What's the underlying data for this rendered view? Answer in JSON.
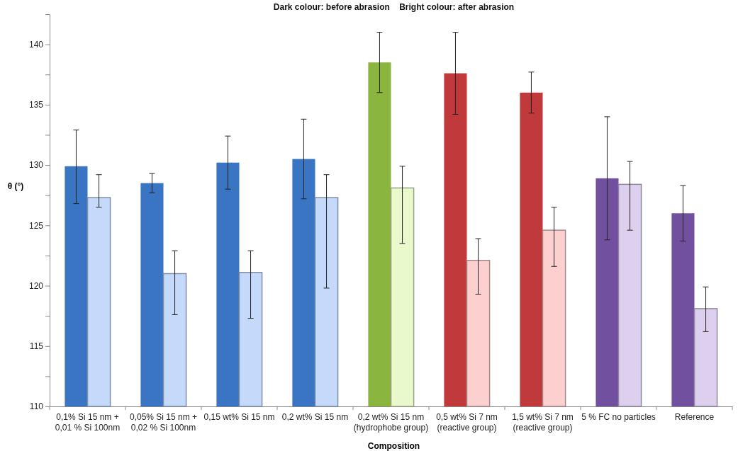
{
  "chart_data": {
    "type": "bar",
    "title": "Dark colour: before abrasion    Bright colour: after abrasion",
    "xlabel": "Composition",
    "ylabel": "θ (°)",
    "categories": [
      "0,1% Si 15 nm +\n0,01 % Si 100nm",
      "0,05% Si 15 nm +\n0,02 % Si 100nm",
      "0,15 wt% Si 15 nm",
      "0,2 wt% Si 15 nm",
      "0,2 wt% Si 15 nm\n(hydrophobe group)",
      "0,5 wt% Si 7 nm\n(reactive group)",
      "1,5 wt% Si 7 nm\n(reactive group)",
      "5 % FC no particles",
      "Reference"
    ],
    "series": [
      {
        "colors": [
          "#3a75c4",
          "#3a75c4",
          "#3a75c4",
          "#3a75c4",
          "#8ab53f",
          "#c0393b",
          "#c0393b",
          "#7250a0",
          "#7250a0"
        ],
        "values": [
          129.9,
          128.5,
          130.2,
          130.5,
          138.5,
          137.6,
          136.0,
          128.9,
          126.0
        ],
        "errors": [
          [
            126.8,
            132.9
          ],
          [
            127.7,
            129.3
          ],
          [
            128.0,
            132.4
          ],
          [
            127.2,
            133.8
          ],
          [
            136.0,
            141.0
          ],
          [
            134.2,
            141.0
          ],
          [
            134.3,
            137.7
          ],
          [
            123.8,
            134.0
          ],
          [
            123.7,
            128.3
          ]
        ]
      },
      {
        "colors": [
          "#c5d9fb",
          "#c5d9fb",
          "#c5d9fb",
          "#c5d9fb",
          "#eaf9cc",
          "#fdd0d0",
          "#fdd0d0",
          "#dcd0ee",
          "#dcd0ee"
        ],
        "values": [
          127.3,
          121.0,
          121.1,
          127.3,
          128.1,
          122.1,
          124.6,
          128.4,
          118.1
        ],
        "errors": [
          [
            126.5,
            129.2
          ],
          [
            117.6,
            122.9
          ],
          [
            117.3,
            122.9
          ],
          [
            119.8,
            129.2
          ],
          [
            123.5,
            129.9
          ],
          [
            119.3,
            123.9
          ],
          [
            121.6,
            126.5
          ],
          [
            124.6,
            130.3
          ],
          [
            116.2,
            119.9
          ]
        ]
      }
    ],
    "ylim": [
      110,
      142.5
    ],
    "yticks": [
      110,
      {
        "value": 112.5,
        "label": null
      },
      115,
      {
        "value": 117.5,
        "label": null
      },
      120,
      {
        "value": 122.5,
        "label": null
      },
      125,
      {
        "value": 127.5,
        "label": null
      },
      130,
      {
        "value": 132.5,
        "label": null
      },
      135,
      {
        "value": 137.5,
        "label": null
      },
      140,
      {
        "value": 142.5,
        "label": null
      }
    ],
    "grid": false
  }
}
